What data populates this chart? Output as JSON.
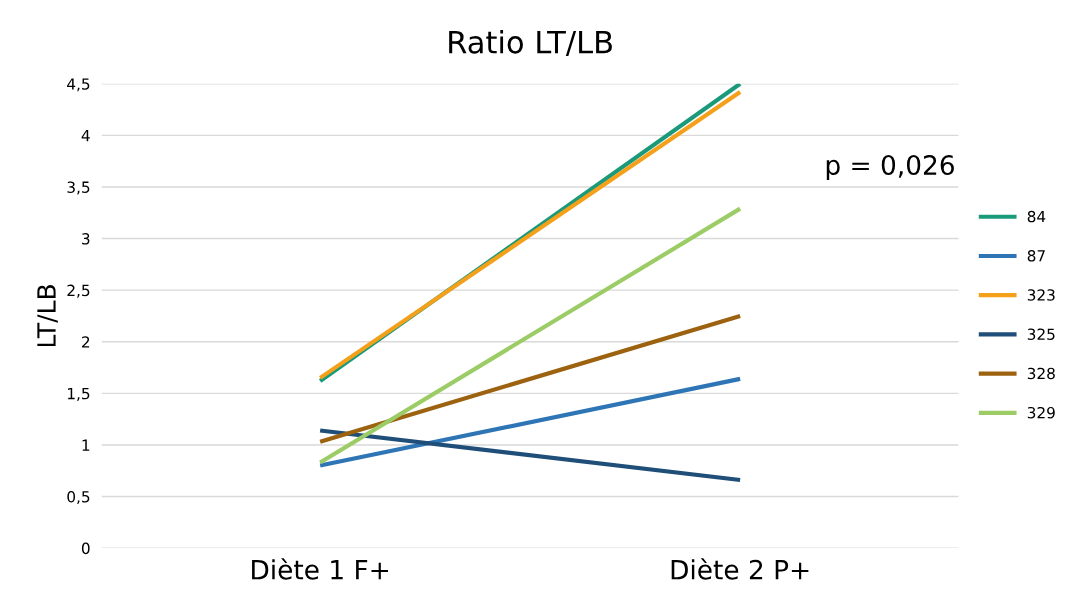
{
  "chart_data": {
    "type": "line",
    "title": "Ratio LT/LB",
    "ylabel": "LT/LB",
    "categories": [
      "Diète 1 F+",
      "Diète 2 P+"
    ],
    "series": [
      {
        "name": "84",
        "color": "#1a9a7a",
        "values": [
          1.62,
          4.5
        ]
      },
      {
        "name": "87",
        "color": "#2e75b6",
        "values": [
          0.8,
          1.64
        ]
      },
      {
        "name": "323",
        "color": "#f5a01a",
        "values": [
          1.65,
          4.42
        ]
      },
      {
        "name": "325",
        "color": "#1f4e79",
        "values": [
          1.14,
          0.66
        ]
      },
      {
        "name": "328",
        "color": "#9c6210",
        "values": [
          1.03,
          2.25
        ]
      },
      {
        "name": "329",
        "color": "#9ccc65",
        "values": [
          0.83,
          3.29
        ]
      }
    ],
    "ylim": [
      0,
      4.5
    ],
    "yticks": [
      0,
      {
        "value": 0.5,
        "label": "0,5"
      },
      1,
      {
        "value": 1.5,
        "label": "1,5"
      },
      2,
      {
        "value": 2.5,
        "label": "2,5"
      },
      3,
      {
        "value": 3.5,
        "label": "3,5"
      },
      4,
      {
        "value": 4.5,
        "label": "4,5"
      }
    ],
    "grid": "y",
    "legend": "right",
    "marker": "none",
    "line_style": "solid",
    "annotations": [
      "p = 0,026"
    ]
  }
}
